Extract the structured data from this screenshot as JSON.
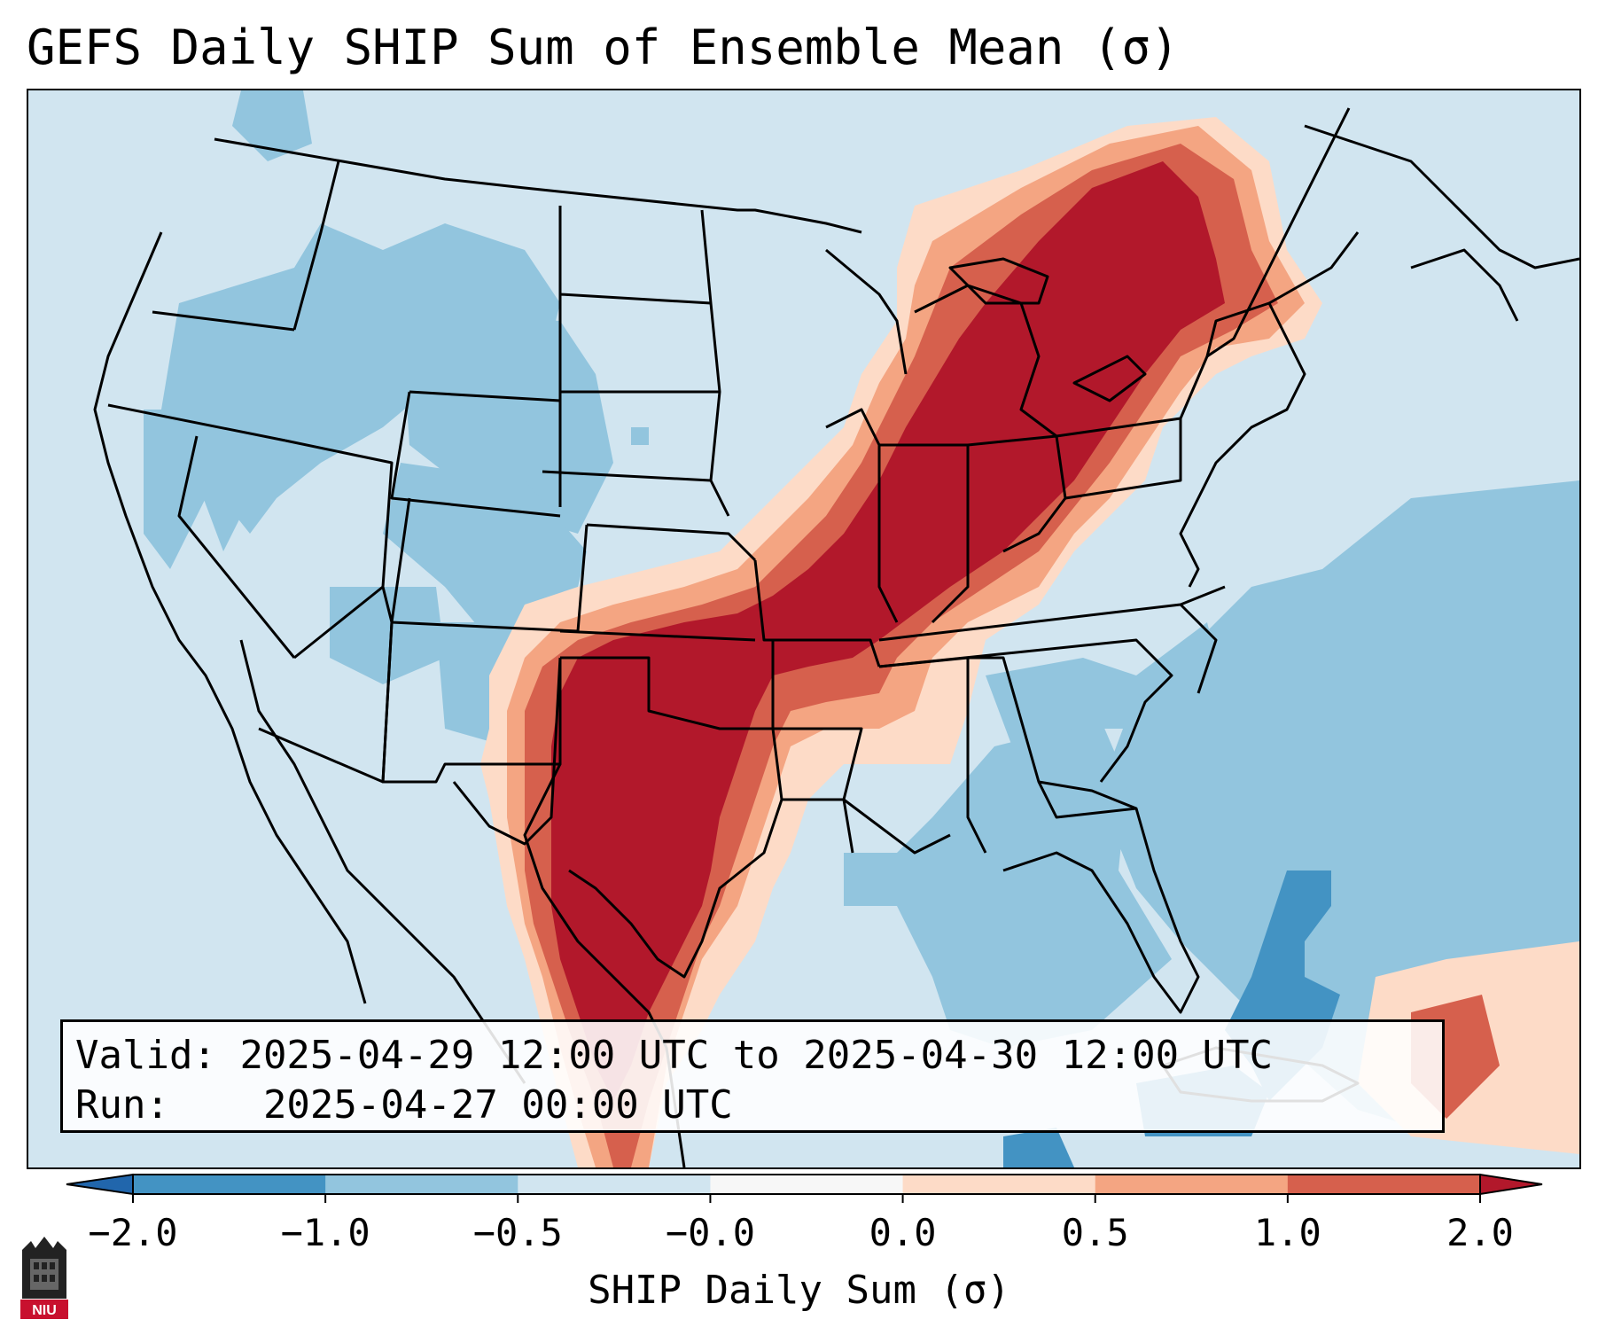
{
  "title": "GEFS Daily SHIP Sum of Ensemble Mean (σ)",
  "info": {
    "valid_label": "Valid:",
    "valid_value": "2025-04-29 12:00 UTC to 2025-04-30 12:00 UTC",
    "run_label": "Run:",
    "run_value": "2025-04-27 00:00 UTC"
  },
  "colorbar": {
    "label": "SHIP Daily Sum (σ)",
    "ticks": [
      "−2.0",
      "−1.0",
      "−0.5",
      "−0.0",
      "0.0",
      "0.5",
      "1.0",
      "2.0"
    ],
    "colors": [
      "#4393c3",
      "#92c5de",
      "#d1e5f0",
      "#f7f7f7",
      "#fddbc7",
      "#f4a582",
      "#d6604d"
    ],
    "under_color": "#2166ac",
    "over_color": "#b2182b"
  },
  "fill_colors": {
    "ocean_base": "#d1e5f0",
    "atlantic": "#92c5de",
    "deep_blue": "#4393c3",
    "light_red": "#fddbc7",
    "mid_red": "#f4a582",
    "red": "#d6604d",
    "dark_red": "#b2182b"
  },
  "logo_text": "NIU"
}
